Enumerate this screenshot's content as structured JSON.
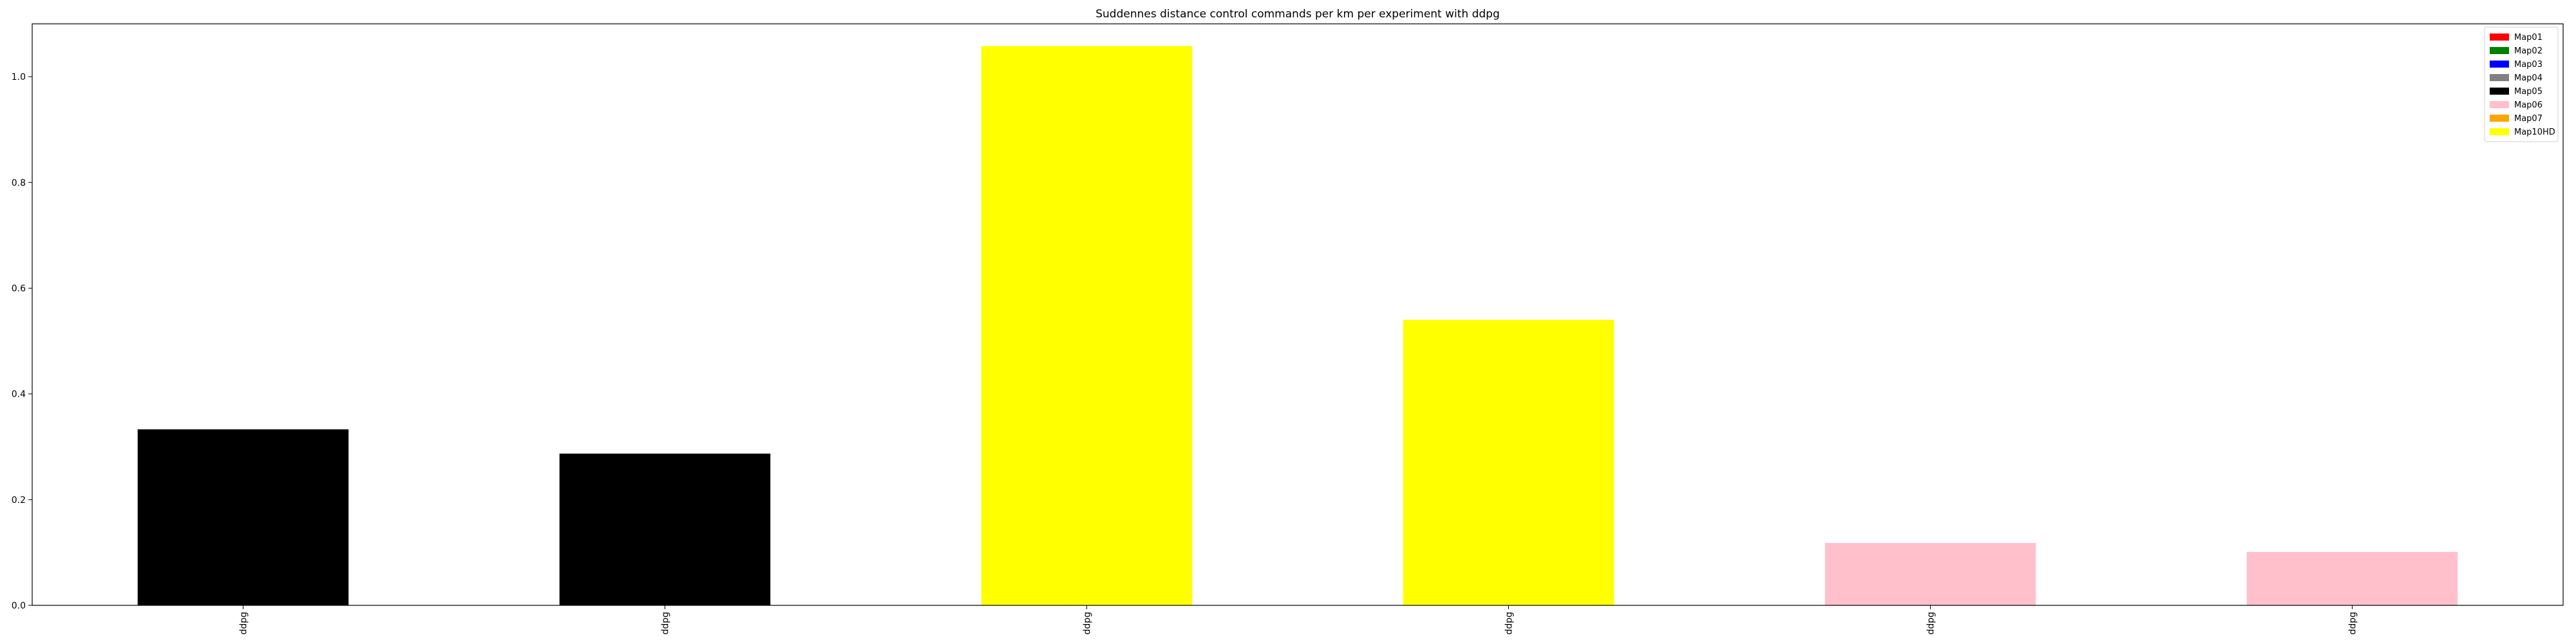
{
  "chart_data": {
    "type": "bar",
    "title": "Suddennes distance control commands per km per experiment with ddpg",
    "xlabel": "",
    "ylabel": "",
    "categories": [
      "ddpg",
      "ddpg",
      "ddpg",
      "ddpg",
      "ddpg",
      "ddpg"
    ],
    "values": [
      0.333,
      0.287,
      1.058,
      0.54,
      0.118,
      0.101
    ],
    "bar_series": [
      "Map05",
      "Map05",
      "Map10HD",
      "Map10HD",
      "Map06",
      "Map06"
    ],
    "ylim": [
      0,
      1.1
    ],
    "yticks": [
      "0.0",
      "0.2",
      "0.4",
      "0.6",
      "0.8",
      "1.0"
    ],
    "grid": false,
    "legend_position": "top-right",
    "legend": [
      {
        "name": "Map01",
        "color": "#ff0000"
      },
      {
        "name": "Map02",
        "color": "#008000"
      },
      {
        "name": "Map03",
        "color": "#0000ff"
      },
      {
        "name": "Map04",
        "color": "#808080"
      },
      {
        "name": "Map05",
        "color": "#000000"
      },
      {
        "name": "Map06",
        "color": "#ffc0cb"
      },
      {
        "name": "Map07",
        "color": "#ffa500"
      },
      {
        "name": "Map10HD",
        "color": "#ffff00"
      }
    ]
  }
}
